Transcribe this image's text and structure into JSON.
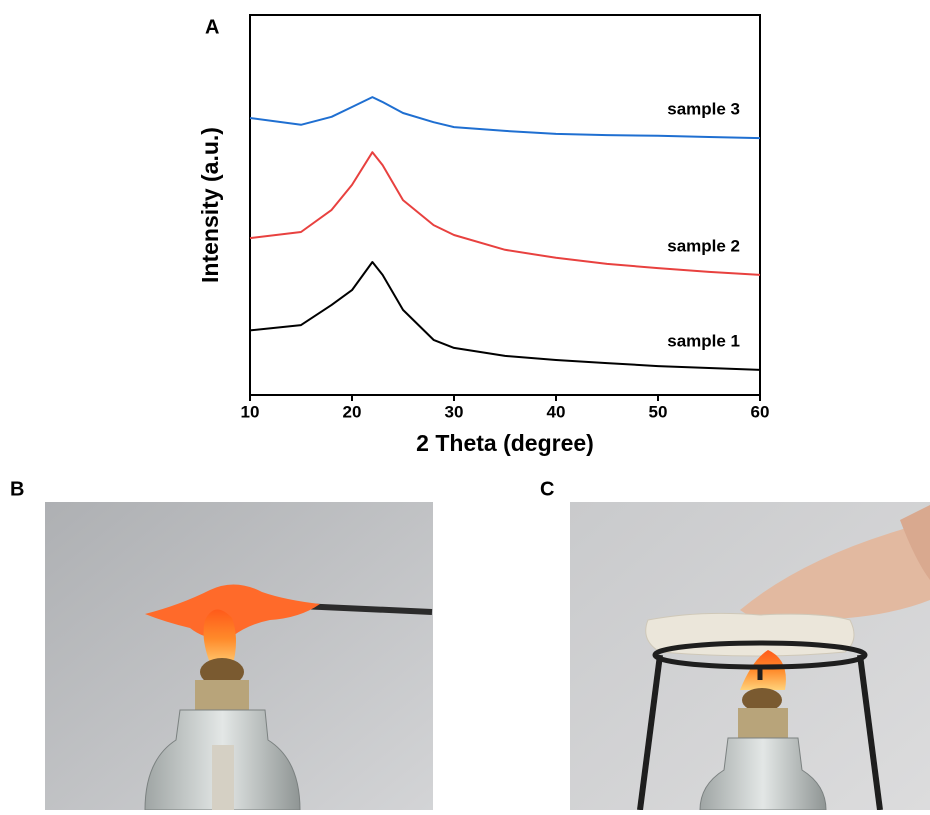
{
  "panel_labels": [
    "A",
    "B",
    "C"
  ],
  "chart_data": {
    "type": "line",
    "x_label": "2 Theta (degree)",
    "y_label": "Intensity (a.u.)",
    "x": [
      10,
      15,
      18,
      20,
      22,
      23,
      25,
      28,
      30,
      35,
      40,
      45,
      50,
      55,
      60
    ],
    "xlim": [
      10,
      60
    ],
    "xticks": [
      10,
      20,
      30,
      40,
      50,
      60
    ],
    "ylim": [
      0,
      100
    ],
    "series": [
      {
        "name": "sample 1",
        "color": "#000000",
        "values": [
          17,
          18.4,
          23.7,
          27.6,
          35,
          31.6,
          22.4,
          14.5,
          12.4,
          10.3,
          9.2,
          8.4,
          7.6,
          7.1,
          6.6
        ]
      },
      {
        "name": "sample 2",
        "color": "#e8413f",
        "values": [
          41.3,
          42.9,
          48.7,
          55.3,
          63.9,
          60.5,
          51.3,
          44.7,
          42.1,
          38.2,
          36.1,
          34.5,
          33.4,
          32.4,
          31.6
        ]
      },
      {
        "name": "sample 3",
        "color": "#1f6fd1",
        "values": [
          72.9,
          71.1,
          73.2,
          75.8,
          78.4,
          77.1,
          74.2,
          71.8,
          70.5,
          69.5,
          68.7,
          68.4,
          68.2,
          67.9,
          67.6
        ]
      }
    ]
  }
}
